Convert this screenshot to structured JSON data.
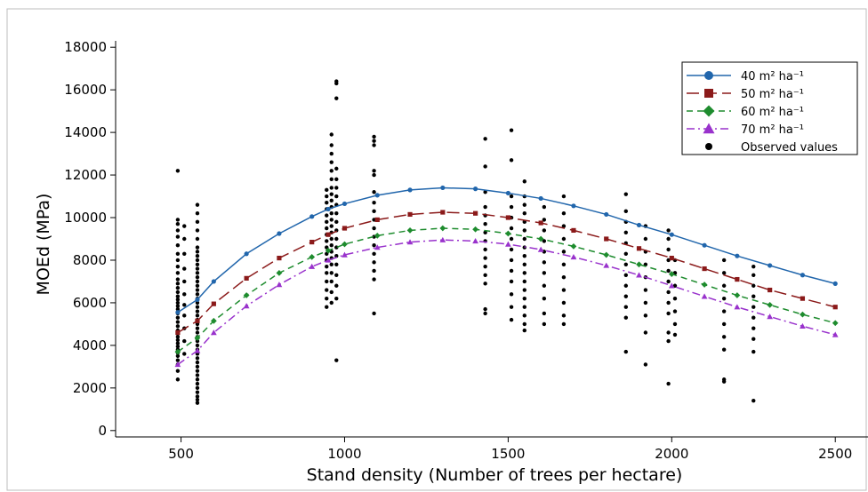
{
  "chart_data": {
    "type": "scatter",
    "title": "",
    "xlabel": "Stand density (Number of trees per hectare)",
    "ylabel": "MOEd (MPa)",
    "xlim": [
      300,
      2600
    ],
    "ylim": [
      -300,
      18300
    ],
    "xticks": [
      500,
      1000,
      1500,
      2000,
      2500
    ],
    "yticks": [
      0,
      2000,
      4000,
      6000,
      8000,
      10000,
      12000,
      14000,
      16000,
      18000
    ],
    "grid": false,
    "legend_position": "top-right",
    "colors": {
      "series_40": "#2166ac",
      "series_50": "#8b1a1a",
      "series_60": "#1e8c2e",
      "series_70": "#9932cc",
      "observed": "#000000",
      "frame": "#bdbdbd"
    },
    "series": [
      {
        "name": "40 m² ha⁻¹",
        "marker": "circle",
        "line": "solid",
        "x": [
          490,
          550,
          600,
          700,
          800,
          900,
          950,
          1000,
          1100,
          1200,
          1300,
          1400,
          1500,
          1600,
          1700,
          1800,
          1900,
          2000,
          2100,
          2200,
          2300,
          2400,
          2500
        ],
        "y": [
          5550,
          6150,
          7000,
          8300,
          9250,
          10050,
          10400,
          10650,
          11050,
          11300,
          11400,
          11350,
          11150,
          10900,
          10550,
          10150,
          9650,
          9200,
          8700,
          8200,
          7750,
          7300,
          6900
        ]
      },
      {
        "name": "50 m² ha⁻¹",
        "marker": "square",
        "line": "long-dash",
        "x": [
          490,
          550,
          600,
          700,
          800,
          900,
          950,
          1000,
          1100,
          1200,
          1300,
          1400,
          1500,
          1600,
          1700,
          1800,
          1900,
          2000,
          2100,
          2200,
          2300,
          2400,
          2500
        ],
        "y": [
          4600,
          5150,
          5950,
          7150,
          8100,
          8850,
          9200,
          9500,
          9900,
          10150,
          10250,
          10200,
          10000,
          9750,
          9400,
          9000,
          8550,
          8100,
          7600,
          7100,
          6600,
          6200,
          5800
        ]
      },
      {
        "name": "60 m² ha⁻¹",
        "marker": "diamond",
        "line": "dash",
        "x": [
          490,
          550,
          600,
          700,
          800,
          900,
          950,
          1000,
          1100,
          1200,
          1300,
          1400,
          1500,
          1600,
          1700,
          1800,
          1900,
          2000,
          2100,
          2200,
          2300,
          2400,
          2500
        ],
        "y": [
          3700,
          4350,
          5150,
          6350,
          7400,
          8150,
          8450,
          8750,
          9150,
          9400,
          9500,
          9450,
          9250,
          9000,
          8650,
          8250,
          7800,
          7350,
          6850,
          6350,
          5900,
          5450,
          5050
        ]
      },
      {
        "name": "70 m² ha⁻¹",
        "marker": "triangle",
        "line": "dash-dot",
        "x": [
          490,
          550,
          600,
          700,
          800,
          900,
          950,
          1000,
          1100,
          1200,
          1300,
          1400,
          1500,
          1600,
          1700,
          1800,
          1900,
          2000,
          2100,
          2200,
          2300,
          2400,
          2500
        ],
        "y": [
          3100,
          3750,
          4600,
          5850,
          6850,
          7700,
          8000,
          8250,
          8600,
          8850,
          8950,
          8900,
          8750,
          8500,
          8150,
          7750,
          7300,
          6800,
          6300,
          5800,
          5350,
          4900,
          4500
        ]
      }
    ],
    "observed": {
      "name": "Observed values",
      "marker": "dot",
      "groups": [
        {
          "x": 490,
          "y": [
            2400,
            2800,
            3100,
            3300,
            3500,
            3650,
            3800,
            3950,
            4100,
            4250,
            4400,
            4550,
            4700,
            4900,
            5100,
            5300,
            5500,
            5700,
            5850,
            6000,
            6150,
            6300,
            6500,
            6700,
            6900,
            7100,
            7400,
            7700,
            8000,
            8300,
            8700,
            9100,
            9400,
            9700,
            9900,
            12200
          ]
        },
        {
          "x": 510,
          "y": [
            3600,
            4200,
            4800,
            5400,
            5900,
            6400,
            7000,
            7600,
            8300,
            9000,
            9600
          ]
        },
        {
          "x": 550,
          "y": [
            1300,
            1450,
            1600,
            1800,
            2000,
            2200,
            2400,
            2600,
            2800,
            3000,
            3200,
            3400,
            3600,
            3800,
            4000,
            4200,
            4400,
            4600,
            4800,
            5000,
            5200,
            5400,
            5600,
            5800,
            6000,
            6200,
            6400,
            6600,
            6800,
            7000,
            7200,
            7400,
            7600,
            7800,
            8000,
            8200,
            8400,
            8600,
            9000,
            9400,
            9800,
            10200,
            10600
          ]
        },
        {
          "x": 945,
          "y": [
            5800,
            6200,
            6600,
            7000,
            7400,
            7700,
            8000,
            8300,
            8600,
            8900,
            9200,
            9500,
            9800,
            10100,
            10400,
            10700,
            11000,
            11300
          ]
        },
        {
          "x": 960,
          "y": [
            6000,
            6500,
            7000,
            7400,
            7800,
            8100,
            8400,
            8700,
            9000,
            9300,
            9600,
            9900,
            10200,
            10500,
            10800,
            11100,
            11400,
            11800,
            12200,
            12600,
            13000,
            13400,
            13900
          ]
        },
        {
          "x": 975,
          "y": [
            3300,
            6200,
            6800,
            7300,
            7800,
            8200,
            8600,
            9000,
            9400,
            9800,
            10200,
            10600,
            11000,
            11400,
            11800,
            12300,
            15600,
            16300,
            16400
          ]
        },
        {
          "x": 1090,
          "y": [
            5500,
            7100,
            7500,
            7900,
            8300,
            8700,
            9100,
            9500,
            9900,
            10300,
            10700,
            11200,
            12000,
            12200,
            13400,
            13600,
            13800
          ]
        },
        {
          "x": 1430,
          "y": [
            5500,
            5700,
            6900,
            7300,
            7700,
            8100,
            8500,
            8900,
            9300,
            9700,
            10100,
            10500,
            11200,
            12400,
            13700
          ]
        },
        {
          "x": 1510,
          "y": [
            5200,
            5800,
            6400,
            7000,
            7500,
            8000,
            8500,
            9000,
            9500,
            10000,
            10500,
            11000,
            12700,
            14100
          ]
        },
        {
          "x": 1550,
          "y": [
            4700,
            5000,
            5400,
            5800,
            6200,
            6600,
            7000,
            7400,
            7800,
            8200,
            8600,
            9000,
            9400,
            9800,
            10200,
            10600,
            11000,
            11700
          ]
        },
        {
          "x": 1610,
          "y": [
            5000,
            5500,
            6200,
            6800,
            7400,
            7900,
            8400,
            8900,
            9400,
            9900,
            10500
          ]
        },
        {
          "x": 1670,
          "y": [
            5000,
            5400,
            6000,
            6600,
            7200,
            7800,
            8400,
            9000,
            9600,
            10200,
            11000
          ]
        },
        {
          "x": 1860,
          "y": [
            3700,
            5300,
            5800,
            6300,
            6800,
            7300,
            7800,
            8300,
            8800,
            9300,
            9800,
            10300,
            11100
          ]
        },
        {
          "x": 1920,
          "y": [
            3100,
            4600,
            5400,
            6000,
            6600,
            7200,
            7800,
            8400,
            9000,
            9600
          ]
        },
        {
          "x": 1990,
          "y": [
            2200,
            4200,
            4600,
            5500,
            6000,
            6500,
            7000,
            7500,
            8000,
            8500,
            9000,
            9400
          ]
        },
        {
          "x": 2010,
          "y": [
            4500,
            5000,
            5600,
            6200,
            6800,
            7400,
            8000
          ]
        },
        {
          "x": 2160,
          "y": [
            2300,
            2400,
            3800,
            4400,
            5000,
            5600,
            6200,
            6800,
            7400,
            8000
          ]
        },
        {
          "x": 2250,
          "y": [
            1400,
            3700,
            4300,
            4800,
            5300,
            5800,
            6300,
            6800,
            7300,
            7700
          ]
        }
      ]
    }
  }
}
